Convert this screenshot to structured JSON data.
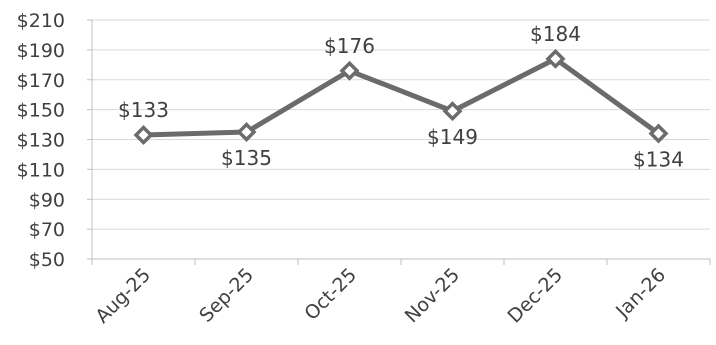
{
  "chart_data": {
    "type": "line",
    "categories": [
      "Aug-25",
      "Sep-25",
      "Oct-25",
      "Nov-25",
      "Dec-25",
      "Jan-26"
    ],
    "series": [
      {
        "values": [
          133,
          135,
          176,
          149,
          184,
          134
        ],
        "color": "#6b6b6b",
        "marker": "diamond-outline"
      }
    ],
    "data_labels": [
      "$133",
      "$135",
      "$176",
      "$149",
      "$184",
      "$134"
    ],
    "y_tick_labels": [
      "$50",
      "$70",
      "$90",
      "$110",
      "$130",
      "$150",
      "$170",
      "$190",
      "$210"
    ],
    "y_ticks": [
      50,
      70,
      90,
      110,
      130,
      150,
      170,
      190,
      210
    ],
    "ylim": [
      50,
      210
    ],
    "grid": "horizontal",
    "legend": "none",
    "title": "",
    "xlabel": "",
    "ylabel": "",
    "colors": {
      "line": "#6b6b6b",
      "grid": "#d9d9d9",
      "text": "#404040",
      "axis": "#bfbfbf"
    }
  }
}
